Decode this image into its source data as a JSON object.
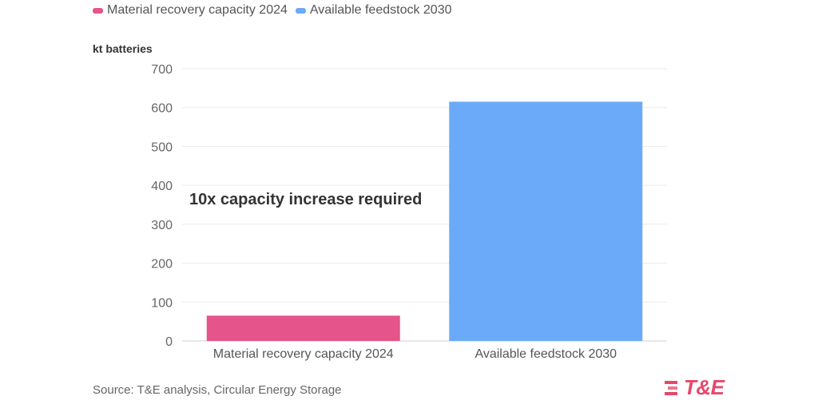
{
  "chart_data": {
    "type": "bar",
    "categories": [
      "Material recovery capacity 2024",
      "Available feedstock 2030"
    ],
    "values": [
      65,
      615
    ],
    "colors": [
      "#e5548a",
      "#6aaaf8"
    ],
    "ylabel": "kt batteries",
    "ylim": [
      0,
      700
    ],
    "yticks": [
      0,
      100,
      200,
      300,
      400,
      500,
      600,
      700
    ],
    "grid": true,
    "legend": {
      "placement": "top-left",
      "entries": [
        "Material recovery capacity 2024",
        "Available feedstock 2030"
      ]
    },
    "annotation": "10x capacity increase required"
  },
  "source": "Source: T&E analysis, Circular Energy Storage",
  "logo": {
    "text": "T&E",
    "color": "#e8476b"
  }
}
